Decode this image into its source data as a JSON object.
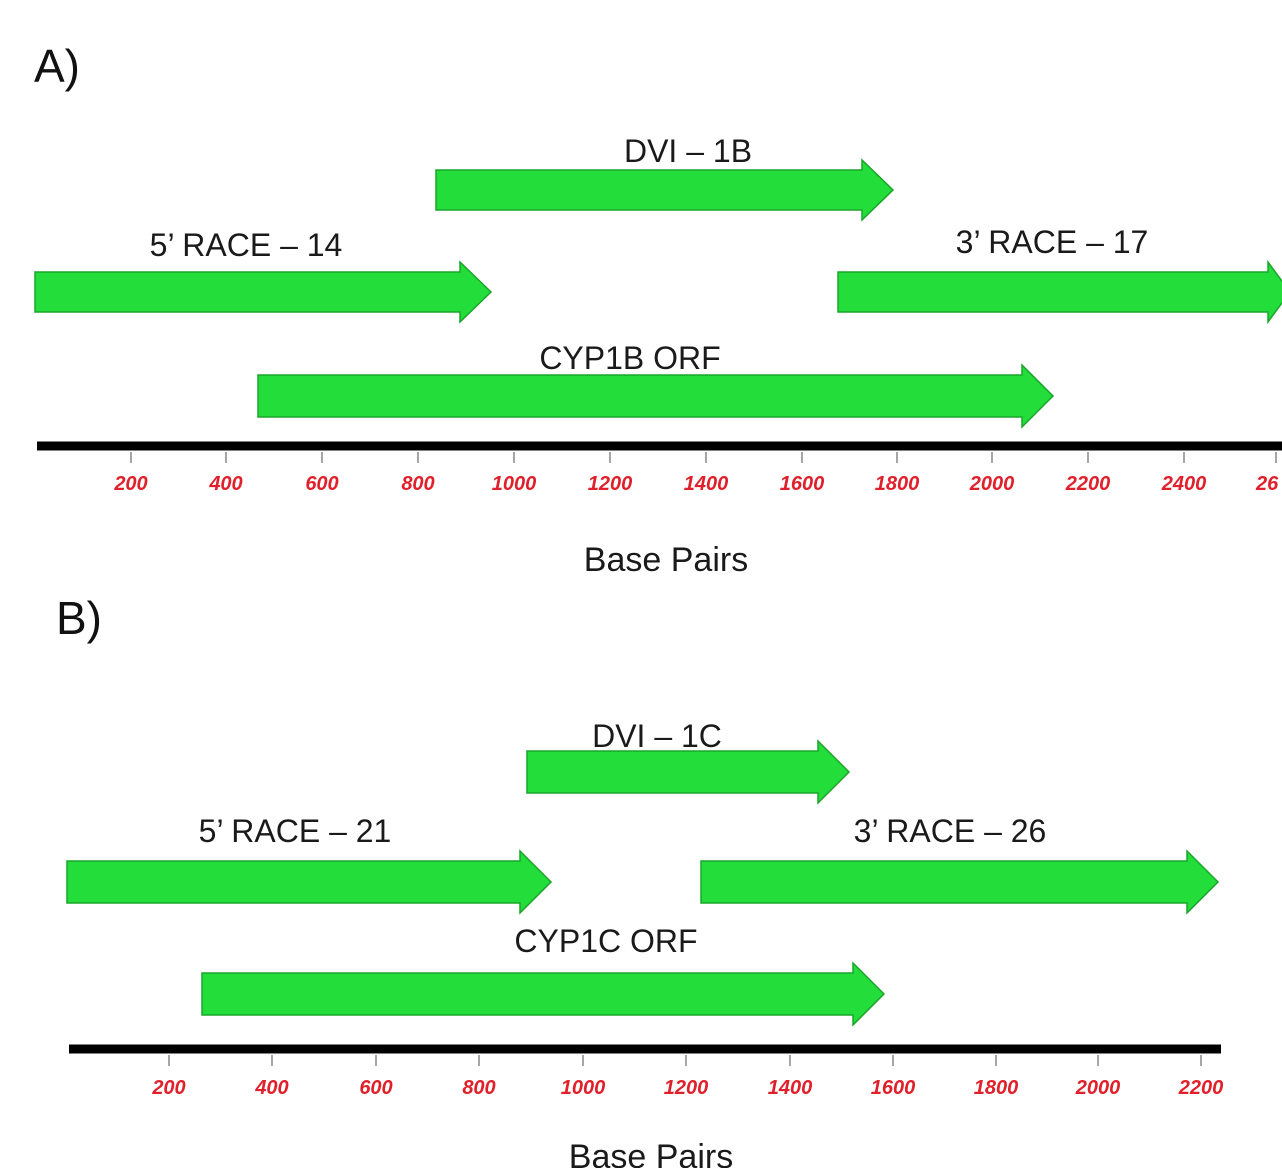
{
  "colors": {
    "arrow_fill": "#22dd3a",
    "arrow_stroke": "#1aa52a",
    "axis": "#000000",
    "tick_label": "#e0202a",
    "text": "#1a1a1a"
  },
  "panels": [
    {
      "label": "A)",
      "axis_title": "Base Pairs",
      "ticks": [
        "200",
        "400",
        "600",
        "800",
        "1000",
        "1200",
        "1400",
        "1600",
        "1800",
        "2000",
        "2200",
        "2400",
        "26"
      ],
      "arrows": [
        {
          "label": "DVI – 1B"
        },
        {
          "label": "5’ RACE – 14"
        },
        {
          "label": "3’ RACE – 17"
        },
        {
          "label": "CYP1B ORF"
        }
      ]
    },
    {
      "label": "B)",
      "axis_title": "Base Pairs",
      "ticks": [
        "200",
        "400",
        "600",
        "800",
        "1000",
        "1200",
        "1400",
        "1600",
        "1800",
        "2000",
        "2200"
      ],
      "arrows": [
        {
          "label": "DVI – 1C"
        },
        {
          "label": "5’ RACE – 21"
        },
        {
          "label": "3’ RACE – 26"
        },
        {
          "label": "CYP1C ORF"
        }
      ]
    }
  ]
}
